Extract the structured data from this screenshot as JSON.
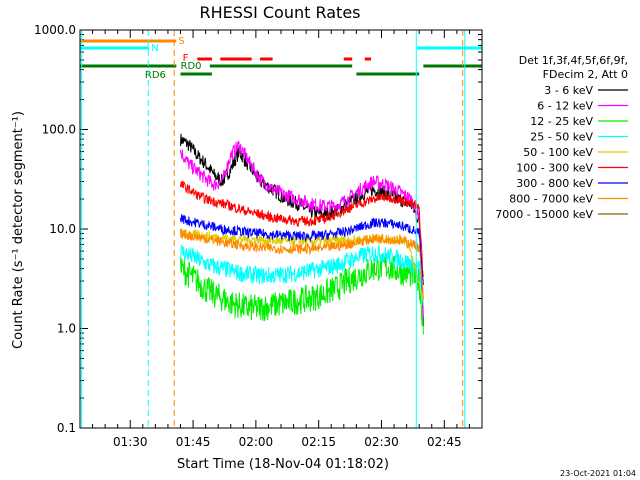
{
  "chart_data": {
    "type": "line",
    "title": "RHESSI Count Rates",
    "xlabel": "Start Time (18-Nov-04 01:18:02)",
    "ylabel": "Count Rate (s⁻¹ detector segment⁻¹)",
    "yscale": "log",
    "ylim": [
      0.1,
      1000
    ],
    "xlim_minutes_after_0118": [
      0,
      96
    ],
    "y_ticks": [
      "0.1",
      "1.0",
      "10.0",
      "100.0",
      "1000.0"
    ],
    "x_ticks": [
      "01:30",
      "01:45",
      "02:00",
      "02:15",
      "02:30",
      "02:45"
    ],
    "x_tick_minutes": [
      12,
      27,
      42,
      57,
      72,
      87
    ],
    "data_start_minute": 24,
    "data_end_minute": 82,
    "legend_header": [
      "Det 1f,3f,4f,5f,6f,9f,",
      "FDecim 2, Att 0"
    ],
    "series": [
      {
        "name": "3 - 6 keV",
        "color": "#000000",
        "x": [
          24,
          26,
          28,
          30,
          32,
          34,
          36,
          38,
          40,
          43,
          46,
          49,
          52,
          55,
          58,
          61,
          64,
          67,
          70,
          73,
          76,
          79,
          81,
          82
        ],
        "y": [
          80,
          70,
          55,
          45,
          35,
          30,
          40,
          60,
          45,
          30,
          25,
          20,
          18,
          15,
          14,
          15,
          18,
          22,
          25,
          23,
          20,
          18,
          12,
          1.2
        ]
      },
      {
        "name": "6 - 12 keV",
        "color": "#ff00ff",
        "x": [
          24,
          26,
          28,
          30,
          32,
          34,
          36,
          38,
          40,
          43,
          46,
          49,
          52,
          55,
          58,
          61,
          64,
          67,
          70,
          73,
          76,
          79,
          81,
          82
        ],
        "y": [
          60,
          45,
          38,
          32,
          28,
          30,
          55,
          70,
          50,
          32,
          25,
          22,
          20,
          18,
          17,
          17,
          20,
          25,
          30,
          28,
          24,
          20,
          14,
          1.5
        ]
      },
      {
        "name": "12 - 25 keV",
        "color": "#00ee00",
        "x": [
          24,
          26,
          28,
          30,
          32,
          34,
          36,
          38,
          40,
          43,
          46,
          49,
          52,
          55,
          58,
          61,
          64,
          67,
          70,
          73,
          76,
          79,
          81,
          82
        ],
        "y": [
          4,
          3.5,
          3,
          2.5,
          2.2,
          2.0,
          1.8,
          1.7,
          1.6,
          1.6,
          1.7,
          1.8,
          1.9,
          2.0,
          2.2,
          2.5,
          3.0,
          3.5,
          4.0,
          4.2,
          3.8,
          3.5,
          3.0,
          1.0
        ]
      },
      {
        "name": "25 - 50 keV",
        "color": "#00ffff",
        "x": [
          24,
          26,
          28,
          30,
          32,
          34,
          36,
          38,
          40,
          43,
          46,
          49,
          52,
          55,
          58,
          61,
          64,
          67,
          70,
          73,
          76,
          79,
          81,
          82
        ],
        "y": [
          6,
          5.5,
          5,
          4.5,
          4.2,
          4.0,
          3.8,
          3.6,
          3.5,
          3.4,
          3.4,
          3.5,
          3.6,
          3.8,
          4.0,
          4.3,
          4.8,
          5.3,
          5.8,
          5.5,
          5.0,
          4.5,
          4.0,
          1.5
        ]
      },
      {
        "name": "50 - 100 keV",
        "color": "#ddcc00",
        "x": [
          24,
          30,
          36,
          42,
          48,
          54,
          60,
          66,
          72,
          78,
          82
        ],
        "y": [
          9,
          8.5,
          8,
          7.8,
          7.6,
          7.5,
          7.6,
          7.8,
          8.0,
          7.8,
          2.0
        ]
      },
      {
        "name": "100 - 300 keV",
        "color": "#ff0000",
        "x": [
          24,
          26,
          28,
          30,
          32,
          34,
          36,
          38,
          40,
          43,
          46,
          49,
          52,
          55,
          58,
          61,
          64,
          67,
          70,
          73,
          76,
          79,
          81,
          82
        ],
        "y": [
          28,
          25,
          22,
          20,
          19,
          18,
          17,
          16,
          15,
          14,
          13,
          12.5,
          12,
          12,
          12.5,
          14,
          16,
          18,
          20,
          21,
          20,
          18,
          16,
          3
        ]
      },
      {
        "name": "300 - 800 keV",
        "color": "#0000ff",
        "x": [
          24,
          26,
          28,
          30,
          32,
          34,
          36,
          38,
          40,
          43,
          46,
          49,
          52,
          55,
          58,
          61,
          64,
          67,
          70,
          73,
          76,
          79,
          81,
          82
        ],
        "y": [
          13,
          12,
          11.5,
          11,
          10.5,
          10,
          9.8,
          9.5,
          9.2,
          9.0,
          8.8,
          8.6,
          8.5,
          8.5,
          8.6,
          9.0,
          9.5,
          10.5,
          11.5,
          11.5,
          11,
          10,
          9,
          2.5
        ]
      },
      {
        "name": "800 - 7000 keV",
        "color": "#ff8800",
        "x": [
          24,
          26,
          28,
          30,
          32,
          34,
          36,
          38,
          40,
          43,
          46,
          49,
          52,
          55,
          58,
          61,
          64,
          67,
          70,
          73,
          76,
          79,
          81,
          82
        ],
        "y": [
          9,
          8.6,
          8.3,
          8.0,
          7.7,
          7.4,
          7.1,
          6.9,
          6.7,
          6.5,
          6.4,
          6.3,
          6.3,
          6.3,
          6.4,
          6.7,
          7.0,
          7.5,
          8.0,
          8.0,
          7.7,
          7.2,
          6.5,
          2.0
        ]
      },
      {
        "name": "7000 - 15000 keV",
        "color": "#886600",
        "x": [],
        "y": []
      }
    ],
    "state_bars": [
      {
        "label": "S",
        "color": "#ff8800"
      },
      {
        "label": "N",
        "color": "#00ffff"
      },
      {
        "label": "F",
        "color": "#ff0000"
      },
      {
        "label": "RD0",
        "color": "#007700"
      },
      {
        "label": "RD6",
        "color": "#007700"
      }
    ],
    "footer_date": "23-Oct-2021 01:04"
  }
}
